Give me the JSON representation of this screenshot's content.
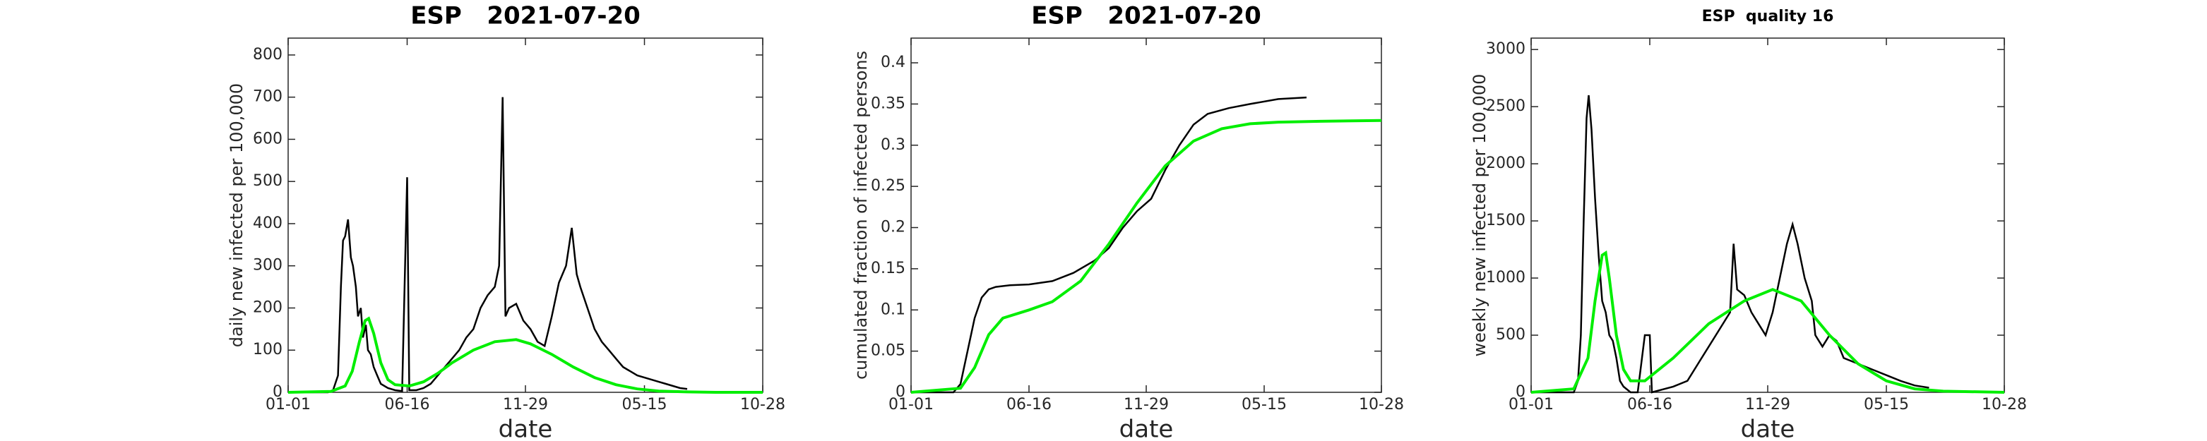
{
  "chart_data": [
    {
      "type": "line",
      "title": "ESP   2021-07-20",
      "xlabel": "date",
      "ylabel": "daily new infected per 100,000",
      "xlim": [
        0,
        666
      ],
      "xticks": [
        {
          "value": 0,
          "label": "01-01"
        },
        {
          "value": 167,
          "label": "06-16"
        },
        {
          "value": 333,
          "label": "11-29"
        },
        {
          "value": 500,
          "label": "05-15"
        },
        {
          "value": 666,
          "label": "10-28"
        }
      ],
      "ylim": [
        0,
        840
      ],
      "yticks": [
        0,
        100,
        200,
        300,
        400,
        500,
        600,
        700,
        800
      ],
      "series": [
        {
          "color": "#000000",
          "x": [
            0,
            56,
            63,
            70,
            74,
            77,
            80,
            84,
            88,
            91,
            95,
            98,
            102,
            105,
            109,
            112,
            116,
            120,
            125,
            130,
            140,
            150,
            160,
            167,
            170,
            180,
            190,
            200,
            210,
            220,
            230,
            240,
            250,
            260,
            270,
            280,
            290,
            296,
            301,
            305,
            310,
            320,
            330,
            340,
            350,
            360,
            370,
            380,
            390,
            398,
            405,
            410,
            420,
            430,
            440,
            450,
            460,
            470,
            480,
            490,
            500,
            510,
            520,
            530,
            540,
            550,
            560
          ],
          "values": [
            0,
            0,
            5,
            40,
            250,
            360,
            370,
            410,
            320,
            300,
            250,
            180,
            200,
            130,
            160,
            100,
            90,
            60,
            40,
            20,
            10,
            5,
            3,
            510,
            5,
            5,
            10,
            20,
            40,
            60,
            80,
            100,
            130,
            150,
            200,
            230,
            250,
            300,
            700,
            180,
            200,
            210,
            170,
            150,
            120,
            110,
            180,
            260,
            300,
            390,
            280,
            250,
            200,
            150,
            120,
            100,
            80,
            60,
            50,
            40,
            35,
            30,
            25,
            20,
            15,
            10,
            8
          ]
        },
        {
          "color": "#00ee00",
          "x": [
            0,
            60,
            80,
            90,
            100,
            108,
            113,
            120,
            130,
            140,
            150,
            170,
            190,
            210,
            230,
            260,
            290,
            320,
            340,
            370,
            400,
            430,
            460,
            490,
            520,
            560,
            600,
            666
          ],
          "values": [
            0,
            2,
            15,
            50,
            120,
            170,
            175,
            140,
            70,
            30,
            18,
            15,
            25,
            45,
            70,
            100,
            120,
            125,
            115,
            90,
            60,
            35,
            18,
            8,
            3,
            1,
            0,
            0
          ]
        }
      ]
    },
    {
      "type": "line",
      "title": "ESP   2021-07-20",
      "xlabel": "date",
      "ylabel": "cumulated fraction of infected persons",
      "xlim": [
        0,
        666
      ],
      "xticks": [
        {
          "value": 0,
          "label": "01-01"
        },
        {
          "value": 167,
          "label": "06-16"
        },
        {
          "value": 333,
          "label": "11-29"
        },
        {
          "value": 500,
          "label": "05-15"
        },
        {
          "value": 666,
          "label": "10-28"
        }
      ],
      "ylim": [
        0,
        0.43
      ],
      "yticks": [
        0,
        0.05,
        0.1,
        0.15,
        0.2,
        0.25,
        0.3,
        0.35,
        0.4
      ],
      "series": [
        {
          "color": "#000000",
          "x": [
            0,
            60,
            70,
            80,
            90,
            100,
            110,
            120,
            140,
            167,
            200,
            230,
            260,
            280,
            300,
            320,
            340,
            360,
            380,
            400,
            420,
            450,
            480,
            520,
            560
          ],
          "values": [
            0,
            0,
            0.01,
            0.05,
            0.09,
            0.115,
            0.125,
            0.128,
            0.13,
            0.131,
            0.135,
            0.145,
            0.16,
            0.175,
            0.2,
            0.22,
            0.235,
            0.27,
            0.3,
            0.325,
            0.338,
            0.345,
            0.35,
            0.356,
            0.358
          ]
        },
        {
          "color": "#00ee00",
          "x": [
            0,
            70,
            90,
            110,
            130,
            167,
            200,
            240,
            280,
            320,
            360,
            400,
            440,
            480,
            520,
            580,
            666
          ],
          "values": [
            0,
            0.005,
            0.03,
            0.07,
            0.09,
            0.1,
            0.11,
            0.135,
            0.18,
            0.23,
            0.275,
            0.305,
            0.32,
            0.326,
            0.328,
            0.329,
            0.33
          ]
        }
      ]
    },
    {
      "type": "line",
      "title": "ESP  quality 16",
      "xlabel": "date",
      "ylabel": "weekly new infected per 100,000",
      "xlim": [
        0,
        666
      ],
      "xticks": [
        {
          "value": 0,
          "label": "01-01"
        },
        {
          "value": 167,
          "label": "06-16"
        },
        {
          "value": 333,
          "label": "11-29"
        },
        {
          "value": 500,
          "label": "05-15"
        },
        {
          "value": 666,
          "label": "10-28"
        }
      ],
      "ylim": [
        0,
        3100
      ],
      "yticks": [
        0,
        500,
        1000,
        1500,
        2000,
        2500,
        3000
      ],
      "series": [
        {
          "color": "#000000",
          "x": [
            0,
            60,
            66,
            70,
            74,
            78,
            81,
            85,
            90,
            95,
            100,
            105,
            110,
            115,
            120,
            125,
            130,
            140,
            150,
            160,
            167,
            170,
            200,
            220,
            240,
            260,
            280,
            285,
            290,
            300,
            310,
            320,
            330,
            340,
            350,
            360,
            368,
            375,
            385,
            395,
            400,
            410,
            420,
            430,
            440,
            460,
            480,
            500,
            520,
            540,
            560
          ],
          "values": [
            0,
            0,
            100,
            500,
            1500,
            2400,
            2600,
            2300,
            1700,
            1200,
            800,
            700,
            500,
            450,
            300,
            100,
            50,
            0,
            0,
            500,
            500,
            0,
            50,
            100,
            300,
            500,
            700,
            1300,
            900,
            850,
            700,
            600,
            500,
            700,
            1000,
            1300,
            1470,
            1300,
            1000,
            800,
            500,
            400,
            500,
            450,
            300,
            250,
            200,
            150,
            100,
            60,
            40
          ]
        },
        {
          "color": "#00ee00",
          "x": [
            0,
            60,
            80,
            90,
            100,
            105,
            110,
            120,
            130,
            140,
            160,
            200,
            250,
            300,
            340,
            380,
            420,
            460,
            500,
            540,
            580,
            666
          ],
          "values": [
            0,
            30,
            300,
            800,
            1200,
            1220,
            1000,
            500,
            200,
            100,
            100,
            300,
            600,
            800,
            900,
            800,
            500,
            250,
            100,
            30,
            10,
            0
          ]
        }
      ]
    }
  ]
}
